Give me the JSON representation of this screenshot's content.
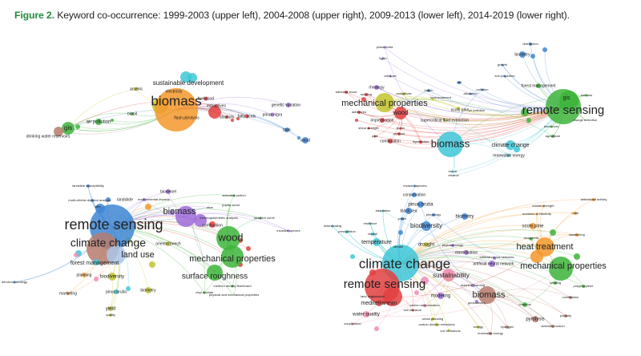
{
  "figure": {
    "label": "Figure 2.",
    "caption": " Keyword co-occurrence: 1999-2003 (upper left), 2004-2008 (upper right), 2009-2013 (lower left), 2014-2019 (lower right)."
  },
  "cluster_colors": {
    "red": "#e2403f",
    "green": "#3db43a",
    "blue": "#3d86d4",
    "yellow": "#c2c42c",
    "purple": "#9e6cd8",
    "cyan": "#3ec7d8",
    "orange": "#f4982c",
    "brown": "#b67b6c",
    "pink": "#f08cb4",
    "lightblue": "#aac6e8"
  },
  "panels": [
    {
      "name": "upper-left",
      "nodes": [
        {
          "label": "biomass",
          "cluster": "orange"
        },
        {
          "label": "sustainable development",
          "cluster": "cyan"
        },
        {
          "label": "electricity",
          "cluster": "orange"
        },
        {
          "label": "arsenic",
          "cluster": "yellow"
        },
        {
          "label": "biooil",
          "cluster": "green"
        },
        {
          "label": "air pollution",
          "cluster": "green"
        },
        {
          "label": "gis",
          "cluster": "green"
        },
        {
          "label": "drinking water reservoirs",
          "cluster": "brown"
        },
        {
          "label": "fuelwood",
          "cluster": "red"
        },
        {
          "label": "extractives",
          "cluster": "red"
        },
        {
          "label": "flash pyrolysis",
          "cluster": "orange"
        },
        {
          "label": "alcohols",
          "cluster": "red"
        },
        {
          "label": "fatty acids",
          "cluster": "red"
        },
        {
          "label": "genetic variation",
          "cluster": "purple"
        },
        {
          "label": "pinus nigra",
          "cluster": "purple"
        },
        {
          "label": "bark",
          "cluster": "blue"
        },
        {
          "label": "wood",
          "cluster": "blue"
        }
      ]
    },
    {
      "name": "upper-right",
      "nodes": [
        {
          "label": "remote sensing",
          "cluster": "green"
        },
        {
          "label": "gis",
          "cluster": "green"
        },
        {
          "label": "forest management",
          "cluster": "green"
        },
        {
          "label": "soil loss",
          "cluster": "green"
        },
        {
          "label": "change detection",
          "cluster": "green"
        },
        {
          "label": "land cover",
          "cluster": "green"
        },
        {
          "label": "agriculture",
          "cluster": "green"
        },
        {
          "label": "biomass",
          "cluster": "cyan"
        },
        {
          "label": "climate change",
          "cluster": "cyan"
        },
        {
          "label": "renewable energy",
          "cluster": "cyan"
        },
        {
          "label": "bio-oil",
          "cluster": "cyan"
        },
        {
          "label": "ethanol",
          "cluster": "cyan"
        },
        {
          "label": "mechanical properties",
          "cluster": "yellow"
        },
        {
          "label": "wood",
          "cluster": "red"
        },
        {
          "label": "impregnation",
          "cluster": "red"
        },
        {
          "label": "combustion",
          "cluster": "red"
        },
        {
          "label": "plywood",
          "cluster": "red"
        },
        {
          "label": "boron",
          "cluster": "red"
        },
        {
          "label": "liquefaction",
          "cluster": "red"
        },
        {
          "label": "shear strength",
          "cluster": "red"
        },
        {
          "label": "pine",
          "cluster": "red"
        },
        {
          "label": "adhesives",
          "cluster": "red"
        },
        {
          "label": "swelling",
          "cluster": "red"
        },
        {
          "label": "adhesive wood",
          "cluster": "red"
        },
        {
          "label": "rheology",
          "cluster": "purple"
        },
        {
          "label": "cellulose",
          "cluster": "purple"
        },
        {
          "label": "lignin",
          "cluster": "purple"
        },
        {
          "label": "pinus brutia",
          "cluster": "purple"
        },
        {
          "label": "extractives",
          "cluster": "yellow"
        },
        {
          "label": "heat treatment",
          "cluster": "yellow"
        },
        {
          "label": "scots pine",
          "cluster": "yellow"
        },
        {
          "label": "air pollution",
          "cluster": "yellow"
        },
        {
          "label": "supercritical fluid extraction",
          "cluster": "yellow"
        },
        {
          "label": "beech",
          "cluster": "blue"
        },
        {
          "label": "soil",
          "cluster": "blue"
        },
        {
          "label": "soil properties",
          "cluster": "blue"
        },
        {
          "label": "growth",
          "cluster": "blue"
        },
        {
          "label": "biometry",
          "cluster": "blue"
        },
        {
          "label": "distribution",
          "cluster": "blue"
        },
        {
          "label": "pollution",
          "cluster": "blue"
        },
        {
          "label": "allocation",
          "cluster": "blue"
        }
      ]
    },
    {
      "name": "lower-left",
      "nodes": [
        {
          "label": "remote sensing",
          "cluster": "blue"
        },
        {
          "label": "climate change",
          "cluster": "brown"
        },
        {
          "label": "land use",
          "cluster": "lightblue"
        },
        {
          "label": "forest management",
          "cluster": "cyan"
        },
        {
          "label": "biomass",
          "cluster": "purple"
        },
        {
          "label": "biodiesel",
          "cluster": "purple"
        },
        {
          "label": "environmental impacts",
          "cluster": "purple"
        },
        {
          "label": "landslide susceptibility",
          "cluster": "blue"
        },
        {
          "label": "multi-criteria decision analysis",
          "cluster": "blue"
        },
        {
          "label": "dem",
          "cluster": "blue"
        },
        {
          "label": "wood",
          "cluster": "green"
        },
        {
          "label": "mechanical properties",
          "cluster": "green"
        },
        {
          "label": "surface roughness",
          "cluster": "green"
        },
        {
          "label": "oriental beech",
          "cluster": "yellow"
        },
        {
          "label": "activated carbon",
          "cluster": "green"
        },
        {
          "label": "poplar wood",
          "cluster": "green"
        },
        {
          "label": "char",
          "cluster": "purple"
        },
        {
          "label": "combustion",
          "cluster": "red"
        },
        {
          "label": "thermogravimetric analysis",
          "cluster": "purple"
        },
        {
          "label": "lactation curve",
          "cluster": "green"
        },
        {
          "label": "invasive species",
          "cluster": "purple"
        },
        {
          "label": "biodiversity",
          "cluster": "yellow"
        },
        {
          "label": "biometry",
          "cluster": "yellow"
        },
        {
          "label": "pinus brutia",
          "cluster": "cyan"
        },
        {
          "label": "yield",
          "cluster": "yellow"
        },
        {
          "label": "quality",
          "cluster": "yellow"
        },
        {
          "label": "planning",
          "cluster": "orange"
        },
        {
          "label": "marketing",
          "cluster": "orange"
        },
        {
          "label": "dendrochronology",
          "cluster": "blue"
        },
        {
          "label": "medium density fiberboard",
          "cluster": "green"
        },
        {
          "label": "vinyl acetate",
          "cluster": "green"
        },
        {
          "label": "physical and mechanical properties",
          "cluster": "green"
        },
        {
          "label": "landslide",
          "cluster": "blue"
        }
      ]
    },
    {
      "name": "lower-right",
      "nodes": [
        {
          "label": "climate change",
          "cluster": "cyan"
        },
        {
          "label": "remote sensing",
          "cluster": "red"
        },
        {
          "label": "biomass",
          "cluster": "brown"
        },
        {
          "label": "heat treatment",
          "cluster": "orange"
        },
        {
          "label": "mechanical properties",
          "cluster": "green"
        },
        {
          "label": "biodiversity",
          "cluster": "blue"
        },
        {
          "label": "pinus brutia",
          "cluster": "blue"
        },
        {
          "label": "conservation",
          "cluster": "blue"
        },
        {
          "label": "invasive species",
          "cluster": "blue"
        },
        {
          "label": "adaptation",
          "cluster": "cyan"
        },
        {
          "label": "black sea",
          "cluster": "blue"
        },
        {
          "label": "biometry",
          "cluster": "blue"
        },
        {
          "label": "phenology",
          "cluster": "blue"
        },
        {
          "label": "pollen",
          "cluster": "blue"
        },
        {
          "label": "drought",
          "cluster": "yellow"
        },
        {
          "label": "temperature",
          "cluster": "cyan"
        },
        {
          "label": "precipitation",
          "cluster": "cyan"
        },
        {
          "label": "downscaling",
          "cluster": "cyan"
        },
        {
          "label": "resilience",
          "cluster": "cyan"
        },
        {
          "label": "rainfall",
          "cluster": "cyan"
        },
        {
          "label": "artificial neural networks",
          "cluster": "purple"
        },
        {
          "label": "artificial neural network",
          "cluster": "purple"
        },
        {
          "label": "classification",
          "cluster": "purple"
        },
        {
          "label": "phytosociology",
          "cluster": "purple"
        },
        {
          "label": "machine learning",
          "cluster": "purple"
        },
        {
          "label": "modeling",
          "cluster": "purple"
        },
        {
          "label": "geostatistics",
          "cluster": "purple"
        },
        {
          "label": "land degradation",
          "cluster": "red"
        },
        {
          "label": "mediterranean",
          "cluster": "red"
        },
        {
          "label": "carbon sequestration",
          "cluster": "pink"
        },
        {
          "label": "water quality",
          "cluster": "pink"
        },
        {
          "label": "soil moisture",
          "cluster": "red"
        },
        {
          "label": "zooplankton",
          "cluster": "pink"
        },
        {
          "label": "urban planning",
          "cluster": "yellow"
        },
        {
          "label": "carbon dioxide emissions",
          "cluster": "yellow"
        },
        {
          "label": "co2 emissions",
          "cluster": "yellow"
        },
        {
          "label": "energy",
          "cluster": "yellow"
        },
        {
          "label": "renewable energy",
          "cluster": "brown"
        },
        {
          "label": "hydrogen",
          "cluster": "brown"
        },
        {
          "label": "pyrolysis",
          "cluster": "brown"
        },
        {
          "label": "activated carbon",
          "cluster": "brown"
        },
        {
          "label": "porosity",
          "cluster": "brown"
        },
        {
          "label": "charcoal",
          "cluster": "green"
        },
        {
          "label": "combustion",
          "cluster": "brown"
        },
        {
          "label": "polypropylene",
          "cluster": "green"
        },
        {
          "label": "swelling",
          "cluster": "green"
        },
        {
          "label": "scots pine",
          "cluster": "orange"
        },
        {
          "label": "tensile strength",
          "cluster": "orange"
        },
        {
          "label": "modulus of elasticity",
          "cluster": "orange"
        },
        {
          "label": "color",
          "cluster": "orange"
        },
        {
          "label": "antioxidant activity",
          "cluster": "orange"
        },
        {
          "label": "weathering",
          "cluster": "orange"
        },
        {
          "label": "roughness",
          "cluster": "green"
        },
        {
          "label": "climate",
          "cluster": "cyan"
        },
        {
          "label": "sustainability",
          "cluster": "pink"
        }
      ]
    }
  ]
}
